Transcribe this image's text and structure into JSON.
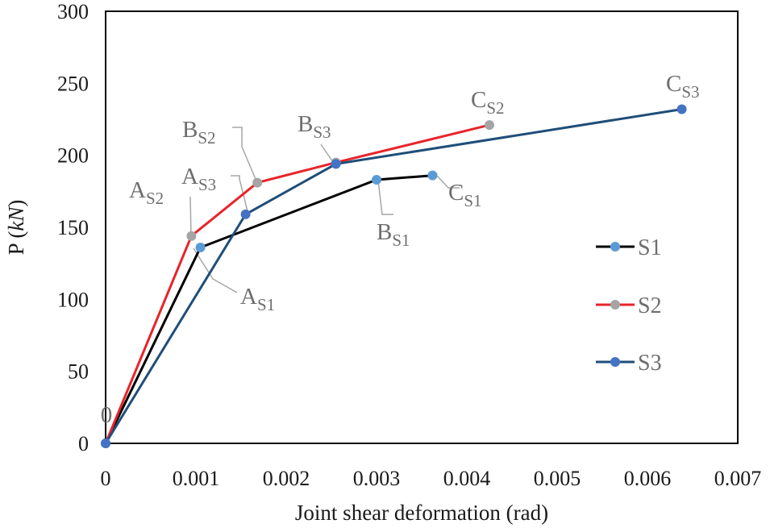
{
  "chart_data": {
    "type": "line",
    "xlabel": "Joint shear deformation (rad)",
    "ylabel": "P",
    "ylabel_unit": "kN",
    "xlim": [
      0,
      0.007
    ],
    "ylim": [
      0,
      300
    ],
    "x_ticks": [
      0,
      0.001,
      0.002,
      0.003,
      0.004,
      0.005,
      0.006,
      0.007
    ],
    "x_tick_labels": [
      "0",
      "0.001",
      "0.002",
      "0.003",
      "0.004",
      "0.005",
      "0.006",
      "0.007"
    ],
    "y_ticks": [
      0,
      50,
      100,
      150,
      200,
      250,
      300
    ],
    "y_tick_labels": [
      "0",
      "50",
      "100",
      "150",
      "200",
      "250",
      "300"
    ],
    "grid": false,
    "legend_position": "right",
    "origin_label": "0",
    "series": [
      {
        "name": "S1",
        "line_color": "#000000",
        "marker_color": "#5b9bd5",
        "x": [
          0,
          0.00105,
          0.003,
          0.00362
        ],
        "y": [
          0,
          136,
          183,
          186
        ],
        "points": [
          {
            "label": "A",
            "sub": "S1"
          },
          {
            "label": "B",
            "sub": "S1"
          },
          {
            "label": "C",
            "sub": "S1"
          }
        ]
      },
      {
        "name": "S2",
        "line_color": "#e8242b",
        "marker_color": "#a5a5a5",
        "x": [
          0,
          0.00095,
          0.00168,
          0.00255,
          0.00425
        ],
        "y": [
          0,
          144,
          181,
          195,
          221
        ],
        "points": [
          {
            "label": "A",
            "sub": "S2"
          },
          {
            "label": "B",
            "sub": "S2"
          },
          {
            "label": "C",
            "sub": "S2"
          }
        ]
      },
      {
        "name": "S3",
        "line_color": "#1f4e79",
        "marker_color": "#4472c4",
        "x": [
          0,
          0.00155,
          0.00255,
          0.00638
        ],
        "y": [
          0,
          159,
          194,
          232
        ],
        "points": [
          {
            "label": "A",
            "sub": "S3"
          },
          {
            "label": "B",
            "sub": "S3"
          },
          {
            "label": "C",
            "sub": "S3"
          }
        ]
      }
    ]
  }
}
